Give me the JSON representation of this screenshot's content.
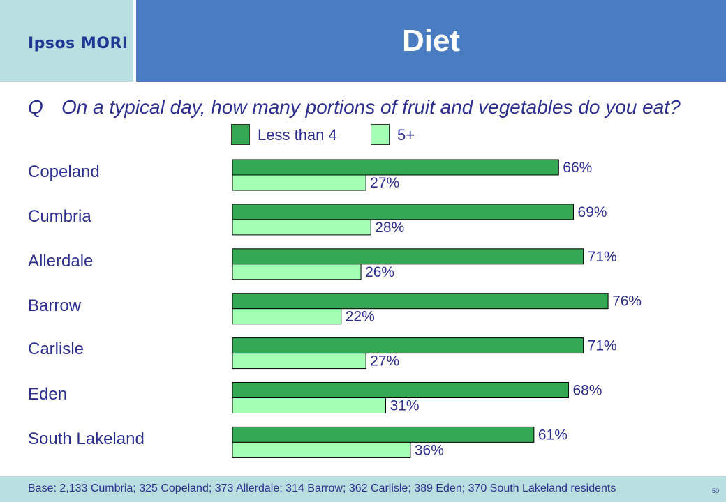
{
  "header": {
    "logo": "Ipsos MORI",
    "title": "Diet"
  },
  "question": {
    "prefix": "Q",
    "text": "On a typical day, how many portions of fruit and vegetables do you eat?"
  },
  "footer": {
    "base": "Base: 2,133 Cumbria; 325 Copeland; 373 Allerdale; 314 Barrow; 362 Carlisle; 389 Eden; 370 South Lakeland residents",
    "page": "50"
  },
  "colors": {
    "dark_green": "#34a853",
    "light_green": "#a3ffb3",
    "header_blue": "#4a7cc1",
    "teal": "#b9dfe0",
    "text_navy": "#2d2f8e"
  },
  "chart_data": {
    "type": "bar",
    "orientation": "horizontal",
    "categories": [
      "Copeland",
      "Cumbria",
      "Allerdale",
      "Barrow",
      "Carlisle",
      "Eden",
      "South Lakeland"
    ],
    "series": [
      {
        "name": "Less than 4",
        "color": "#34a853",
        "values": [
          66,
          69,
          71,
          76,
          71,
          68,
          61
        ]
      },
      {
        "name": "5+",
        "color": "#a3ffb3",
        "values": [
          27,
          28,
          26,
          22,
          27,
          31,
          36
        ]
      }
    ],
    "value_suffix": "%",
    "xlim": [
      0,
      100
    ],
    "legend": "top",
    "grid": false
  }
}
